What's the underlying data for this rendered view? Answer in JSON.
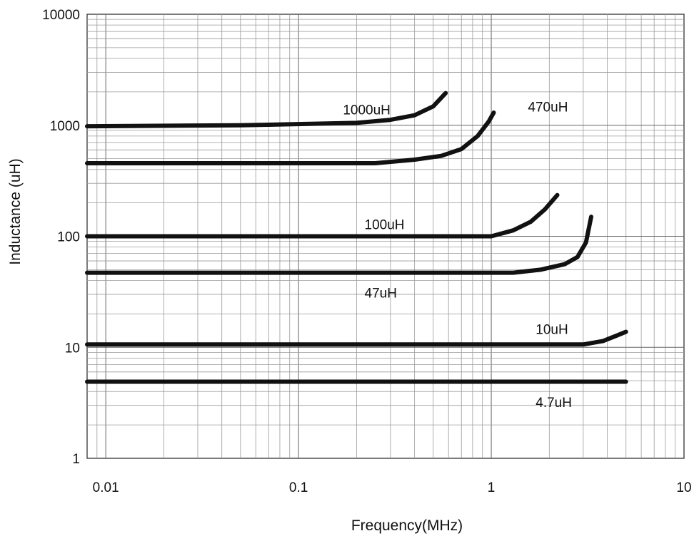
{
  "chart_data": {
    "type": "line",
    "title": "",
    "xlabel": "Frequency(MHz)",
    "ylabel": "Inductance (uH)",
    "x_scale": "log",
    "y_scale": "log",
    "xlim": [
      0.008,
      10
    ],
    "ylim": [
      1,
      10000
    ],
    "grid": true,
    "x_ticks": [
      {
        "value": 0.01,
        "label": "0.01"
      },
      {
        "value": 0.1,
        "label": "0.1"
      },
      {
        "value": 1,
        "label": "1"
      },
      {
        "value": 10,
        "label": "10"
      }
    ],
    "y_ticks": [
      {
        "value": 1,
        "label": "1"
      },
      {
        "value": 10,
        "label": "10"
      },
      {
        "value": 100,
        "label": "100"
      },
      {
        "value": 1000,
        "label": "1000"
      },
      {
        "value": 10000,
        "label": "10000"
      }
    ],
    "series": [
      {
        "label": "1000uH",
        "label_pos": {
          "x": 0.17,
          "y": 1250
        },
        "points": [
          [
            0.008,
            980
          ],
          [
            0.05,
            1000
          ],
          [
            0.2,
            1050
          ],
          [
            0.3,
            1120
          ],
          [
            0.4,
            1230
          ],
          [
            0.5,
            1480
          ],
          [
            0.58,
            1950
          ]
        ]
      },
      {
        "label": "470uH",
        "label_pos": {
          "x": 1.55,
          "y": 1330
        },
        "points": [
          [
            0.008,
            455
          ],
          [
            0.25,
            455
          ],
          [
            0.4,
            490
          ],
          [
            0.55,
            530
          ],
          [
            0.7,
            610
          ],
          [
            0.85,
            800
          ],
          [
            0.97,
            1080
          ],
          [
            1.03,
            1300
          ]
        ]
      },
      {
        "label": "100uH",
        "label_pos": {
          "x": 0.22,
          "y": 116
        },
        "points": [
          [
            0.008,
            100
          ],
          [
            1.0,
            100
          ],
          [
            1.3,
            113
          ],
          [
            1.6,
            135
          ],
          [
            1.9,
            175
          ],
          [
            2.2,
            235
          ]
        ]
      },
      {
        "label": "47uH",
        "label_pos": {
          "x": 0.22,
          "y": 28
        },
        "points": [
          [
            0.008,
            47
          ],
          [
            1.3,
            47
          ],
          [
            1.8,
            50
          ],
          [
            2.4,
            56
          ],
          [
            2.8,
            65
          ],
          [
            3.1,
            88
          ],
          [
            3.3,
            150
          ]
        ]
      },
      {
        "label": "10uH",
        "label_pos": {
          "x": 1.7,
          "y": 13.2
        },
        "points": [
          [
            0.008,
            10.6
          ],
          [
            3.0,
            10.6
          ],
          [
            3.8,
            11.4
          ],
          [
            4.5,
            12.8
          ],
          [
            5.0,
            13.8
          ]
        ]
      },
      {
        "label": "4.7uH",
        "label_pos": {
          "x": 1.7,
          "y": 2.9
        },
        "points": [
          [
            0.008,
            4.9
          ],
          [
            5.0,
            4.9
          ]
        ]
      }
    ]
  }
}
